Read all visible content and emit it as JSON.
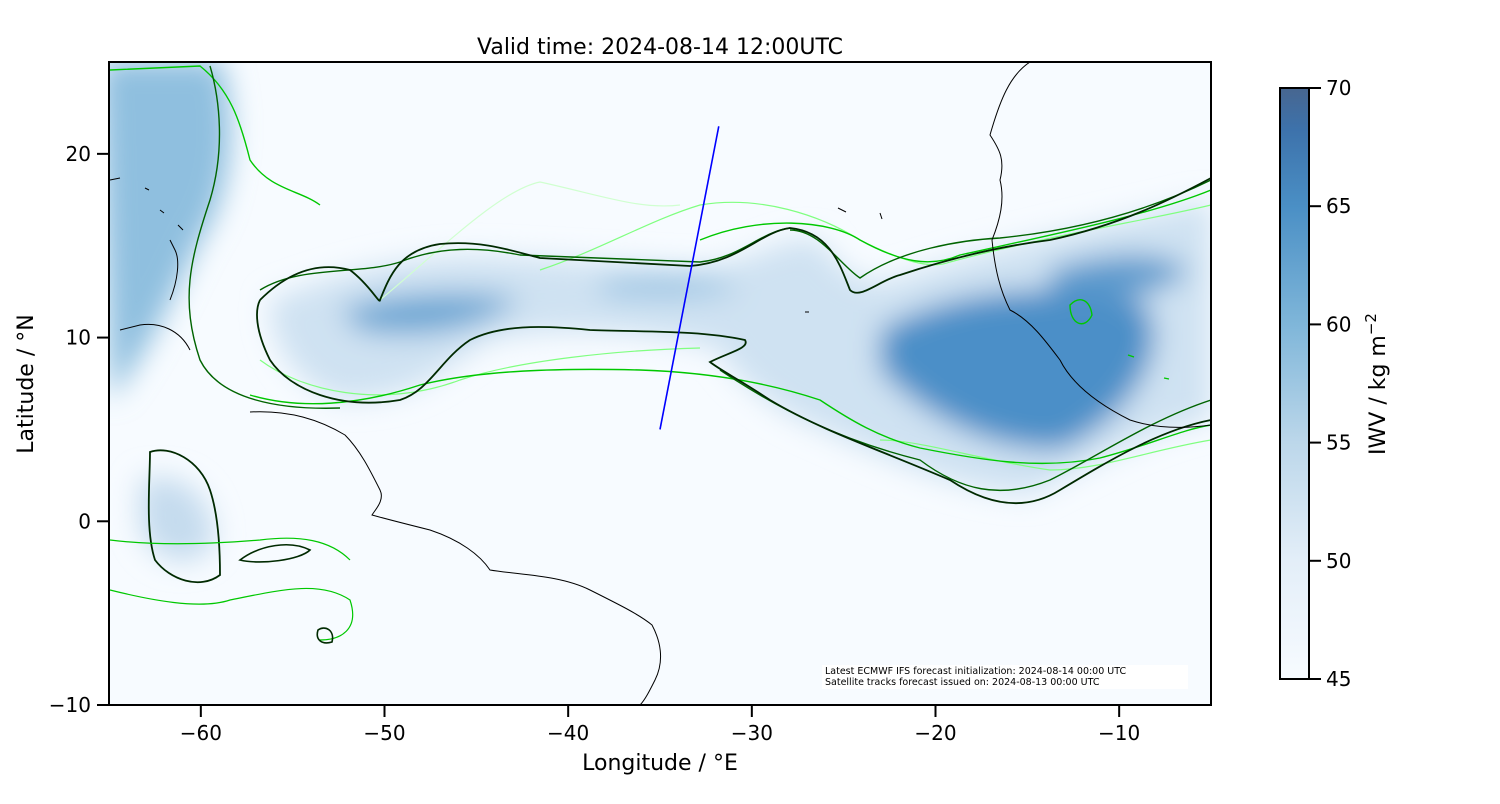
{
  "chart_data": {
    "type": "heatmap",
    "title": "Valid time: 2024-08-14 12:00UTC",
    "xlabel": "Longitude / °E",
    "ylabel": "Latitude / °N",
    "xlim": [
      -65,
      -5
    ],
    "ylim": [
      -10,
      25
    ],
    "xticks": [
      -60,
      -50,
      -40,
      -30,
      -20,
      -10
    ],
    "yticks": [
      -10,
      0,
      10,
      20
    ],
    "colorbar": {
      "label": "IWV / kg m",
      "label_sup": "−2",
      "range": [
        45,
        70
      ],
      "ticks": [
        45,
        50,
        55,
        60,
        65,
        70
      ],
      "colormap": [
        "#f7fbff",
        "#deebf7",
        "#c6dbef",
        "#9ecae1",
        "#6baed6",
        "#4292c6",
        "#2171b5",
        "#46699a"
      ]
    },
    "flight_track": {
      "color": "#0000ff",
      "points": [
        [
          -35.0,
          5.0
        ],
        [
          -31.8,
          21.5
        ]
      ]
    },
    "contour_colors": [
      "#002a00",
      "#006400",
      "#00c800",
      "#80ff80",
      "#d0ffd0"
    ],
    "annotation": [
      "Latest ECMWF IFS forecast initialization: 2024-08-14 00:00 UTC",
      "Satellite tracks forecast issued on: 2024-08-13 00:00 UTC"
    ]
  }
}
